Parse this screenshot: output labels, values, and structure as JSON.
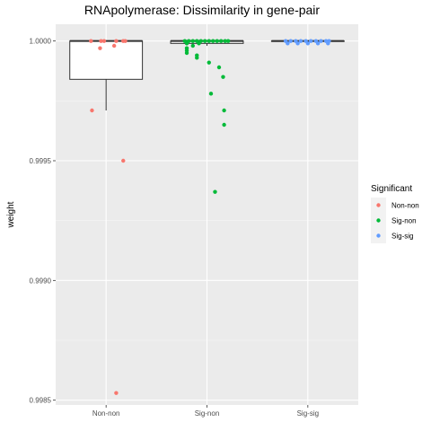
{
  "chart_data": {
    "type": "boxplot",
    "title": "RNApolymerase: Dissimilarity in gene-pair",
    "xlabel": "",
    "ylabel": "weight",
    "ylim": [
      0.99848,
      1.00007
    ],
    "y_ticks": [
      0.9985,
      0.999,
      0.9995,
      1.0
    ],
    "y_tick_labels": [
      "0.9985",
      "0.9990",
      "0.9995",
      "1.0000"
    ],
    "categories": [
      "Non-non",
      "Sig-non",
      "Sig-sig"
    ],
    "grid": true,
    "legend": {
      "title": "Significant",
      "placement": "right",
      "entries": [
        {
          "name": "Non-non",
          "color": "#F8766D"
        },
        {
          "name": "Sig-non",
          "color": "#00BA38"
        },
        {
          "name": "Sig-sig",
          "color": "#619CFF"
        }
      ]
    },
    "boxes": [
      {
        "category": "Non-non",
        "q1": 0.99984,
        "median": 1.0,
        "q3": 1.0,
        "whisker_low": 0.99971,
        "whisker_high": 1.0
      },
      {
        "category": "Sig-non",
        "q1": 0.99999,
        "median": 1.0,
        "q3": 1.0,
        "whisker_low": 0.99998,
        "whisker_high": 1.0
      },
      {
        "category": "Sig-sig",
        "q1": 1.0,
        "median": 1.0,
        "q3": 1.0,
        "whisker_low": 1.0,
        "whisker_high": 1.0
      }
    ],
    "points": [
      {
        "category": "Non-non",
        "color": "#F8766D",
        "items": [
          {
            "j": -0.15,
            "y": 1.0
          },
          {
            "j": -0.05,
            "y": 1.0
          },
          {
            "j": -0.02,
            "y": 1.0
          },
          {
            "j": 0.1,
            "y": 1.0
          },
          {
            "j": 0.17,
            "y": 1.0
          },
          {
            "j": 0.19,
            "y": 1.0
          },
          {
            "j": -0.06,
            "y": 0.99997
          },
          {
            "j": 0.08,
            "y": 0.99998
          },
          {
            "j": -0.14,
            "y": 0.99971
          },
          {
            "j": 0.17,
            "y": 0.9995
          },
          {
            "j": 0.1,
            "y": 0.99853
          }
        ]
      },
      {
        "category": "Sig-non",
        "color": "#00BA38",
        "items": [
          {
            "j": -0.22,
            "y": 1.0
          },
          {
            "j": -0.18,
            "y": 1.0
          },
          {
            "j": -0.14,
            "y": 1.0
          },
          {
            "j": -0.1,
            "y": 1.0
          },
          {
            "j": -0.06,
            "y": 1.0
          },
          {
            "j": -0.02,
            "y": 1.0
          },
          {
            "j": 0.02,
            "y": 1.0
          },
          {
            "j": 0.06,
            "y": 1.0
          },
          {
            "j": 0.1,
            "y": 1.0
          },
          {
            "j": 0.14,
            "y": 1.0
          },
          {
            "j": 0.18,
            "y": 1.0
          },
          {
            "j": 0.21,
            "y": 1.0
          },
          {
            "j": -0.2,
            "y": 0.99999
          },
          {
            "j": -0.08,
            "y": 0.99999
          },
          {
            "j": -0.2,
            "y": 0.99997
          },
          {
            "j": -0.14,
            "y": 0.99998
          },
          {
            "j": -0.2,
            "y": 0.99996
          },
          {
            "j": -0.2,
            "y": 0.99995
          },
          {
            "j": -0.1,
            "y": 0.99994
          },
          {
            "j": -0.1,
            "y": 0.99993
          },
          {
            "j": 0.02,
            "y": 0.99991
          },
          {
            "j": 0.12,
            "y": 0.99989
          },
          {
            "j": 0.16,
            "y": 0.99985
          },
          {
            "j": 0.04,
            "y": 0.99978
          },
          {
            "j": 0.17,
            "y": 0.99971
          },
          {
            "j": 0.17,
            "y": 0.99965
          },
          {
            "j": 0.08,
            "y": 0.99937
          }
        ]
      },
      {
        "category": "Sig-sig",
        "color": "#619CFF",
        "items": [
          {
            "j": -0.22,
            "y": 1.0
          },
          {
            "j": -0.17,
            "y": 1.0
          },
          {
            "j": -0.12,
            "y": 1.0
          },
          {
            "j": -0.07,
            "y": 1.0
          },
          {
            "j": -0.02,
            "y": 1.0
          },
          {
            "j": 0.03,
            "y": 1.0
          },
          {
            "j": 0.08,
            "y": 1.0
          },
          {
            "j": 0.13,
            "y": 1.0
          },
          {
            "j": 0.18,
            "y": 1.0
          },
          {
            "j": 0.21,
            "y": 1.0
          },
          {
            "j": -0.2,
            "y": 0.99999
          },
          {
            "j": -0.1,
            "y": 0.99999
          },
          {
            "j": 0.0,
            "y": 0.99999
          },
          {
            "j": 0.1,
            "y": 0.99999
          },
          {
            "j": 0.2,
            "y": 0.99999
          }
        ]
      }
    ]
  }
}
